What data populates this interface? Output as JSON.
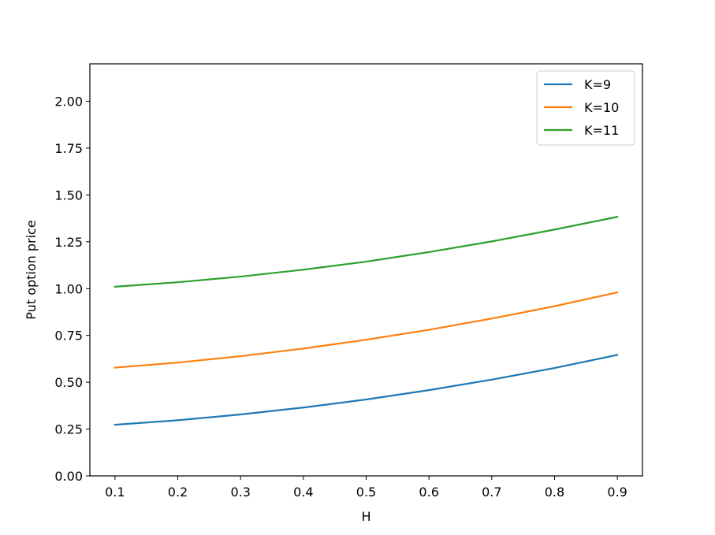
{
  "chart_data": {
    "type": "line",
    "title": "",
    "xlabel": "H",
    "ylabel": "Put option price",
    "xlim": [
      0.06,
      0.94
    ],
    "ylim": [
      0.0,
      2.2
    ],
    "xticks": [
      0.1,
      0.2,
      0.3,
      0.4,
      0.5,
      0.6,
      0.7,
      0.8,
      0.9
    ],
    "xtick_labels": [
      "0.1",
      "0.2",
      "0.3",
      "0.4",
      "0.5",
      "0.6",
      "0.7",
      "0.8",
      "0.9"
    ],
    "yticks": [
      0.0,
      0.25,
      0.5,
      0.75,
      1.0,
      1.25,
      1.5,
      1.75,
      2.0
    ],
    "ytick_labels": [
      "0.00",
      "0.25",
      "0.50",
      "0.75",
      "1.00",
      "1.25",
      "1.50",
      "1.75",
      "2.00"
    ],
    "grid": false,
    "legend_position": "top-right",
    "x": [
      0.1,
      0.2,
      0.3,
      0.4,
      0.5,
      0.6,
      0.7,
      0.8,
      0.9
    ],
    "series": [
      {
        "name": "K=9",
        "color": "#1f77b4",
        "values": [
          0.273,
          0.297,
          0.328,
          0.365,
          0.408,
          0.458,
          0.514,
          0.576,
          0.646
        ]
      },
      {
        "name": "K=10",
        "color": "#ff7f0e",
        "values": [
          0.578,
          0.605,
          0.639,
          0.68,
          0.727,
          0.78,
          0.84,
          0.906,
          0.98
        ]
      },
      {
        "name": "K=11",
        "color": "#2ca02c",
        "values": [
          1.01,
          1.034,
          1.064,
          1.101,
          1.144,
          1.195,
          1.252,
          1.315,
          1.383
        ]
      }
    ]
  }
}
